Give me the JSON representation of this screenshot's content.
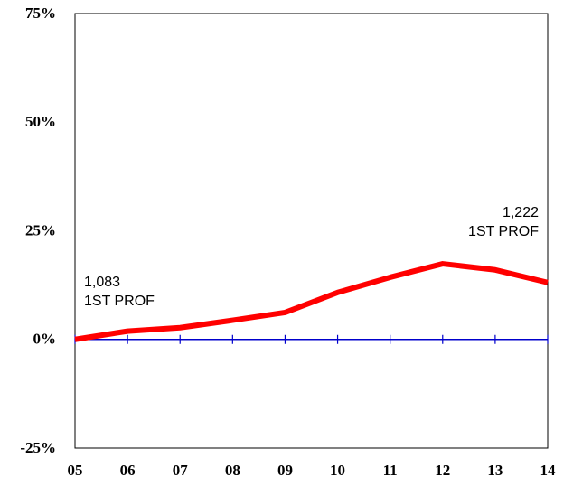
{
  "chart_data": {
    "type": "line",
    "categories": [
      "05",
      "06",
      "07",
      "08",
      "09",
      "10",
      "11",
      "12",
      "13",
      "14"
    ],
    "series": [
      {
        "name": "1ST PROF",
        "color": "#ff0000",
        "values": [
          0,
          1.9,
          2.7,
          4.4,
          6.2,
          10.8,
          14.3,
          17.4,
          16,
          13.1
        ]
      }
    ],
    "ylim": [
      -25,
      75
    ],
    "yticks": [
      {
        "value": -25,
        "label": "-25%"
      },
      {
        "value": 0,
        "label": "0%"
      },
      {
        "value": 25,
        "label": "25%"
      },
      {
        "value": 50,
        "label": "50%"
      },
      {
        "value": 75,
        "label": "75%"
      }
    ],
    "zero_line_color": "#0000cc",
    "annotations": [
      {
        "lines": [
          "1,083",
          "1ST PROF"
        ]
      },
      {
        "lines": [
          "1,222",
          "1ST PROF"
        ]
      }
    ]
  }
}
